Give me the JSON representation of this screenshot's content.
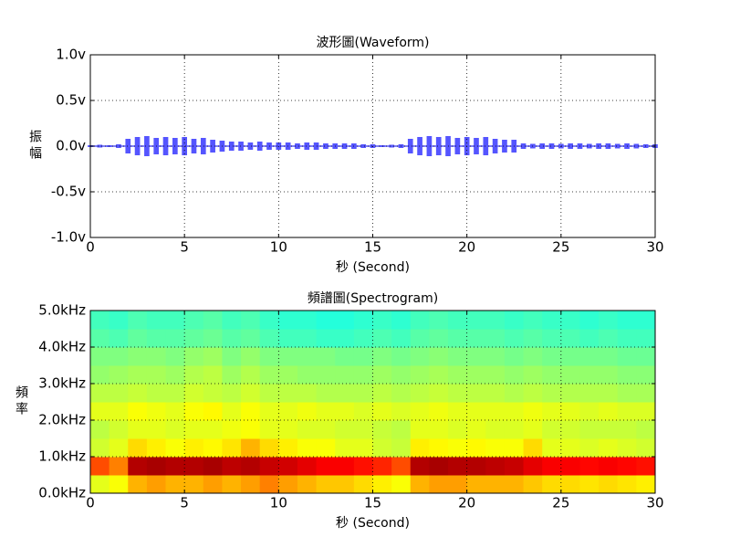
{
  "chart_data": [
    {
      "type": "envelope",
      "title": "波形圖(Waveform)",
      "xlabel": "秒 (Second)",
      "ylabel": "振幅",
      "x": [
        0,
        0.5,
        1,
        1.5,
        2,
        2.5,
        3,
        3.5,
        4,
        4.5,
        5,
        5.5,
        6,
        6.5,
        7,
        7.5,
        8,
        8.5,
        9,
        9.5,
        10,
        10.5,
        11,
        11.5,
        12,
        12.5,
        13,
        13.5,
        14,
        14.5,
        15,
        15.5,
        16,
        16.5,
        17,
        17.5,
        18,
        18.5,
        19,
        19.5,
        20,
        20.5,
        21,
        21.5,
        22,
        22.5,
        23,
        23.5,
        24,
        24.5,
        25,
        25.5,
        26,
        26.5,
        27,
        27.5,
        28,
        28.5,
        29,
        29.5,
        30
      ],
      "values": [
        0.01,
        0.015,
        0.01,
        0.02,
        0.08,
        0.1,
        0.11,
        0.09,
        0.1,
        0.09,
        0.1,
        0.08,
        0.09,
        0.07,
        0.06,
        0.05,
        0.05,
        0.04,
        0.05,
        0.04,
        0.04,
        0.04,
        0.03,
        0.04,
        0.04,
        0.03,
        0.03,
        0.03,
        0.03,
        0.02,
        0.02,
        0.01,
        0.015,
        0.02,
        0.08,
        0.1,
        0.11,
        0.1,
        0.11,
        0.09,
        0.1,
        0.09,
        0.1,
        0.08,
        0.07,
        0.07,
        0.03,
        0.025,
        0.03,
        0.03,
        0.025,
        0.03,
        0.03,
        0.025,
        0.03,
        0.03,
        0.025,
        0.03,
        0.025,
        0.02,
        0.02
      ],
      "color": "#5555ff",
      "xlim": [
        0,
        30
      ],
      "xticks": [
        0,
        5,
        10,
        15,
        20,
        25,
        30
      ],
      "ylim": [
        -1,
        1
      ],
      "yticks": [
        {
          "value": -1,
          "label": "-1.0v"
        },
        {
          "value": -0.5,
          "label": "-0.5v"
        },
        {
          "value": 0,
          "label": "0.0v"
        },
        {
          "value": 0.5,
          "label": "0.5v"
        },
        {
          "value": 1,
          "label": "1.0v"
        }
      ],
      "grid": true
    },
    {
      "type": "heatmap",
      "title": "頻譜圖(Spectrogram)",
      "xlabel": "秒 (Second)",
      "ylabel": "頻率",
      "x_edges": [
        0,
        1,
        2,
        3,
        4,
        5,
        6,
        7,
        8,
        9,
        10,
        11,
        12,
        13,
        14,
        15,
        16,
        17,
        18,
        19,
        20,
        21,
        22,
        23,
        24,
        25,
        26,
        27,
        28,
        29,
        30
      ],
      "y_edges": [
        0,
        500,
        1000,
        1500,
        2000,
        2500,
        3000,
        3500,
        4000,
        4500,
        5000
      ],
      "values": [
        [
          0.6,
          0.62,
          0.7,
          0.72,
          0.7,
          0.7,
          0.72,
          0.7,
          0.72,
          0.75,
          0.72,
          0.7,
          0.68,
          0.68,
          0.66,
          0.64,
          0.62,
          0.7,
          0.72,
          0.72,
          0.7,
          0.7,
          0.7,
          0.68,
          0.66,
          0.66,
          0.65,
          0.66,
          0.65,
          0.64
        ],
        [
          0.8,
          0.75,
          0.95,
          0.96,
          0.95,
          0.95,
          0.96,
          0.94,
          0.95,
          0.93,
          0.92,
          0.9,
          0.88,
          0.88,
          0.86,
          0.84,
          0.8,
          0.95,
          0.96,
          0.95,
          0.95,
          0.94,
          0.93,
          0.9,
          0.88,
          0.88,
          0.87,
          0.88,
          0.87,
          0.86
        ],
        [
          0.58,
          0.6,
          0.66,
          0.64,
          0.62,
          0.64,
          0.63,
          0.65,
          0.7,
          0.66,
          0.64,
          0.62,
          0.62,
          0.6,
          0.6,
          0.58,
          0.57,
          0.64,
          0.63,
          0.62,
          0.63,
          0.62,
          0.62,
          0.66,
          0.6,
          0.6,
          0.59,
          0.6,
          0.59,
          0.58
        ],
        [
          0.56,
          0.58,
          0.6,
          0.6,
          0.59,
          0.6,
          0.6,
          0.61,
          0.62,
          0.6,
          0.6,
          0.59,
          0.59,
          0.58,
          0.58,
          0.57,
          0.56,
          0.6,
          0.6,
          0.59,
          0.6,
          0.59,
          0.59,
          0.6,
          0.58,
          0.58,
          0.57,
          0.57,
          0.57,
          0.56
        ],
        [
          0.6,
          0.6,
          0.62,
          0.61,
          0.6,
          0.62,
          0.63,
          0.6,
          0.62,
          0.6,
          0.6,
          0.61,
          0.6,
          0.6,
          0.59,
          0.6,
          0.59,
          0.6,
          0.61,
          0.6,
          0.6,
          0.6,
          0.6,
          0.61,
          0.6,
          0.6,
          0.59,
          0.6,
          0.59,
          0.59
        ],
        [
          0.56,
          0.56,
          0.57,
          0.56,
          0.56,
          0.58,
          0.57,
          0.56,
          0.58,
          0.56,
          0.56,
          0.56,
          0.55,
          0.55,
          0.55,
          0.56,
          0.55,
          0.56,
          0.57,
          0.56,
          0.56,
          0.56,
          0.55,
          0.56,
          0.55,
          0.55,
          0.55,
          0.55,
          0.54,
          0.54
        ],
        [
          0.52,
          0.53,
          0.54,
          0.54,
          0.53,
          0.55,
          0.56,
          0.53,
          0.55,
          0.53,
          0.53,
          0.52,
          0.52,
          0.52,
          0.52,
          0.53,
          0.52,
          0.53,
          0.54,
          0.53,
          0.53,
          0.53,
          0.52,
          0.53,
          0.52,
          0.52,
          0.52,
          0.52,
          0.51,
          0.51
        ],
        [
          0.5,
          0.5,
          0.51,
          0.51,
          0.5,
          0.52,
          0.53,
          0.5,
          0.52,
          0.5,
          0.5,
          0.5,
          0.5,
          0.49,
          0.49,
          0.5,
          0.49,
          0.5,
          0.51,
          0.5,
          0.5,
          0.5,
          0.49,
          0.5,
          0.49,
          0.49,
          0.49,
          0.49,
          0.48,
          0.48
        ],
        [
          0.46,
          0.45,
          0.47,
          0.46,
          0.46,
          0.47,
          0.48,
          0.46,
          0.47,
          0.45,
          0.44,
          0.44,
          0.43,
          0.43,
          0.44,
          0.45,
          0.44,
          0.46,
          0.47,
          0.46,
          0.46,
          0.46,
          0.45,
          0.46,
          0.45,
          0.45,
          0.44,
          0.45,
          0.44,
          0.44
        ],
        [
          0.44,
          0.43,
          0.45,
          0.44,
          0.44,
          0.45,
          0.46,
          0.44,
          0.45,
          0.43,
          0.42,
          0.42,
          0.41,
          0.41,
          0.42,
          0.43,
          0.42,
          0.44,
          0.45,
          0.44,
          0.44,
          0.44,
          0.43,
          0.44,
          0.43,
          0.43,
          0.42,
          0.43,
          0.42,
          0.42
        ]
      ],
      "colormap": "jet",
      "xlim": [
        0,
        30
      ],
      "xticks": [
        0,
        5,
        10,
        15,
        20,
        25,
        30
      ],
      "ylim": [
        0,
        5000
      ],
      "yticks": [
        {
          "value": 0,
          "label": "0.0kHz"
        },
        {
          "value": 1000,
          "label": "1.0kHz"
        },
        {
          "value": 2000,
          "label": "2.0kHz"
        },
        {
          "value": 3000,
          "label": "3.0kHz"
        },
        {
          "value": 4000,
          "label": "4.0kHz"
        },
        {
          "value": 5000,
          "label": "5.0kHz"
        }
      ],
      "grid": true
    }
  ]
}
